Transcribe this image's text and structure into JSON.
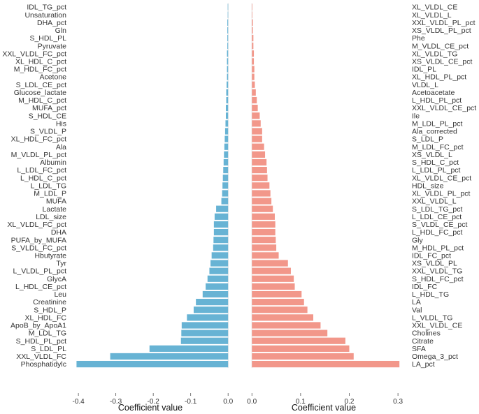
{
  "chart_data": [
    {
      "type": "bar",
      "orientation": "horizontal",
      "xlabel": "Coefficient value",
      "xlim": [
        -0.42,
        0.0
      ],
      "xticks": [
        "-0.4",
        "-0.3",
        "-0.2",
        "-0.1",
        "0.0"
      ],
      "xtick_values": [
        -0.4,
        -0.3,
        -0.2,
        -0.1,
        0.0
      ],
      "grid": false,
      "color": "#67b3d4",
      "categories": [
        "IDL_TG_pct",
        "Unsaturation",
        "DHA_pct",
        "Gln",
        "S_HDL_PL",
        "Pyruvate",
        "XXL_VLDL_FC_pct",
        "XL_HDL_C_pct",
        "M_HDL_FC_pct",
        "Acetone",
        "S_LDL_CE_pct",
        "Glucose_lactate",
        "M_HDL_C_pct",
        "MUFA_pct",
        "S_HDL_CE",
        "His",
        "S_VLDL_P",
        "XL_HDL_FC_pct",
        "Ala",
        "M_VLDL_PL_pct",
        "Albumin",
        "L_LDL_FC_pct",
        "L_HDL_C_pct",
        "L_LDL_TG",
        "M_LDL_P",
        "MUFA",
        "Lactate",
        "LDL_size",
        "XL_VLDL_FC_pct",
        "DHA",
        "PUFA_by_MUFA",
        "S_VLDL_FC_pct",
        "Hbutyrate",
        "Tyr",
        "L_VLDL_PL_pct",
        "GlycA",
        "L_HDL_CE_pct",
        "Leu",
        "Creatinine",
        "S_HDL_P",
        "XL_HDL_FC",
        "ApoB_by_ApoA1",
        "M_LDL_TG",
        "S_HDL_PL_pct",
        "S_LDL_PL",
        "XXL_VLDL_FC",
        "Phosphatidylc"
      ],
      "values": [
        -0.001,
        -0.001,
        -0.002,
        -0.002,
        -0.002,
        -0.002,
        -0.003,
        -0.003,
        -0.003,
        -0.003,
        -0.004,
        -0.005,
        -0.005,
        -0.006,
        -0.006,
        -0.007,
        -0.008,
        -0.009,
        -0.01,
        -0.011,
        -0.012,
        -0.013,
        -0.014,
        -0.015,
        -0.016,
        -0.018,
        -0.032,
        -0.036,
        -0.038,
        -0.038,
        -0.039,
        -0.04,
        -0.044,
        -0.047,
        -0.05,
        -0.055,
        -0.06,
        -0.068,
        -0.086,
        -0.092,
        -0.11,
        -0.124,
        -0.125,
        -0.126,
        -0.21,
        -0.315,
        -0.405
      ]
    },
    {
      "type": "bar",
      "orientation": "horizontal",
      "xlabel": "Coefficient value",
      "xlim": [
        -0.01,
        0.305
      ],
      "xticks": [
        "0.0",
        "0.1",
        "0.2",
        "0.3"
      ],
      "xtick_values": [
        0.0,
        0.1,
        0.2,
        0.3
      ],
      "grid": false,
      "color": "#f2978a",
      "categories": [
        "XL_VLDL_CE",
        "XL_VLDL_L",
        "XXL_VLDL_PL_pct",
        "XS_VLDL_PL_pct",
        "Phe",
        "M_VLDL_CE_pct",
        "XL_VLDL_TG",
        "XS_VLDL_CE_pct",
        "IDL_PL",
        "XL_HDL_PL_pct",
        "VLDL_L",
        "Acetoacetate",
        "L_HDL_PL_pct",
        "XXL_VLDL_CE_pct",
        "Ile",
        "M_LDL_PL_pct",
        "Ala_corrected",
        "S_LDL_P",
        "M_LDL_FC_pct",
        "XS_VLDL_L",
        "S_HDL_C_pct",
        "L_LDL_PL_pct",
        "XL_VLDL_CE_pct",
        "HDL_size",
        "XL_VLDL_PL_pct",
        "XXL_VLDL_L",
        "S_LDL_TG_pct",
        "L_LDL_CE_pct",
        "S_VLDL_CE_pct",
        "L_HDL_FC_pct",
        "Gly",
        "M_HDL_PL_pct",
        "IDL_FC_pct",
        "XS_VLDL_PL",
        "XXL_VLDL_TG",
        "S_HDL_FC_pct",
        "IDL_FC",
        "L_HDL_TG",
        "LA",
        "Val",
        "L_VLDL_TG",
        "XXL_VLDL_CE",
        "Cholines",
        "Citrate",
        "SFA",
        "Omega_3_pct",
        "LA_pct"
      ],
      "values": [
        0.001,
        0.001,
        0.002,
        0.002,
        0.003,
        0.003,
        0.004,
        0.004,
        0.005,
        0.005,
        0.006,
        0.008,
        0.01,
        0.012,
        0.016,
        0.018,
        0.021,
        0.021,
        0.025,
        0.027,
        0.03,
        0.031,
        0.032,
        0.036,
        0.038,
        0.04,
        0.043,
        0.047,
        0.048,
        0.048,
        0.049,
        0.05,
        0.055,
        0.074,
        0.08,
        0.086,
        0.088,
        0.102,
        0.107,
        0.114,
        0.126,
        0.141,
        0.155,
        0.192,
        0.2,
        0.209,
        0.303
      ]
    }
  ]
}
